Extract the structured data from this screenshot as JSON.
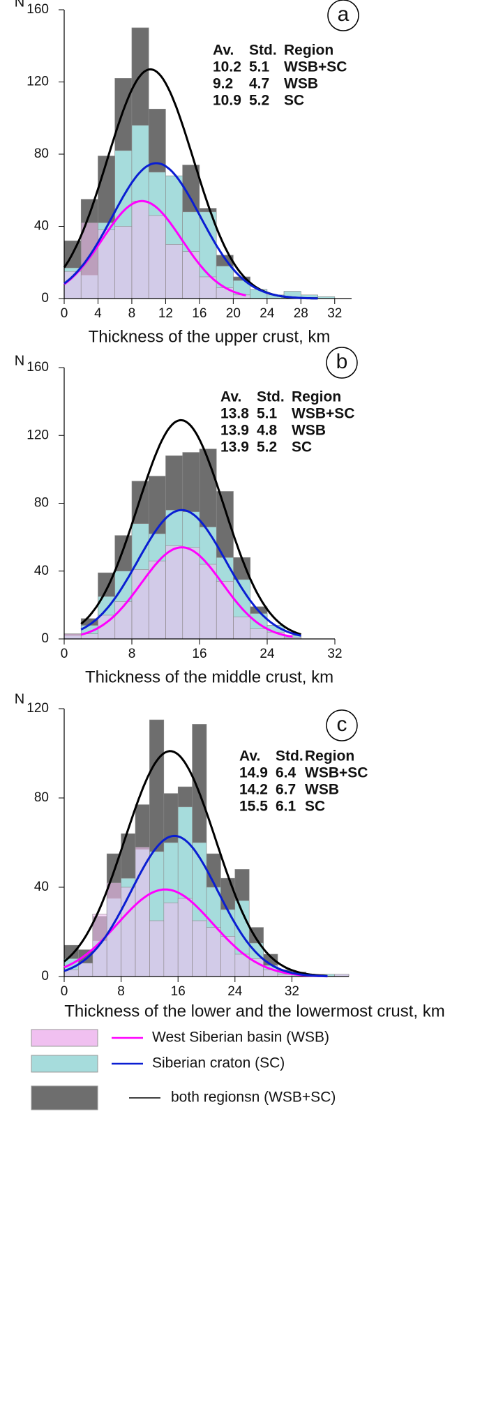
{
  "chart_data": [
    {
      "type": "histogram",
      "panel_label": "a",
      "y_label": "N",
      "x_label": "Thickness of the upper crust, km",
      "xlim": [
        0,
        34
      ],
      "ylim": [
        0,
        160
      ],
      "xticks": [
        0,
        4,
        8,
        12,
        16,
        20,
        24,
        28,
        32
      ],
      "yticks": [
        0,
        40,
        80,
        120,
        160
      ],
      "bins": [
        0,
        2,
        4,
        6,
        8,
        10,
        12,
        14,
        16,
        18,
        20,
        22,
        24,
        26,
        28,
        30,
        32
      ],
      "series": [
        {
          "color": "#f0c0f0",
          "values": [
            15,
            42,
            38,
            40,
            54,
            46,
            30,
            26,
            12,
            6,
            2,
            0,
            0,
            0,
            0,
            0
          ]
        },
        {
          "color": "#a6dcdc",
          "values": [
            17,
            13,
            42,
            82,
            96,
            70,
            68,
            48,
            48,
            18,
            10,
            5,
            2,
            4,
            2,
            1
          ]
        },
        {
          "color": "#6e6e6e",
          "values": [
            32,
            55,
            79,
            122,
            150,
            105,
            65,
            74,
            50,
            24,
            12,
            5,
            2,
            4,
            2,
            1
          ]
        }
      ],
      "stats": {
        "header": [
          "Av.",
          "Std.",
          "Region"
        ],
        "rows": [
          [
            10.2,
            5.1,
            "WSB+SC"
          ],
          [
            9.2,
            4.7,
            "WSB"
          ],
          [
            10.9,
            5.2,
            "SC"
          ]
        ]
      },
      "curves": [
        {
          "color": "#000000",
          "peak": 127,
          "xrange": [
            0,
            30
          ]
        },
        {
          "color": "#ff00ff",
          "peak": 54,
          "xrange": [
            0,
            21.5
          ]
        },
        {
          "color": "#0a1ed2",
          "peak": 75,
          "xrange": [
            0,
            30
          ]
        }
      ]
    },
    {
      "type": "histogram",
      "panel_label": "b",
      "y_label": "N",
      "x_label": "Thickness of the middle crust, km",
      "xlim": [
        0,
        32
      ],
      "ylim": [
        0,
        160
      ],
      "xticks": [
        0,
        8,
        16,
        24,
        32
      ],
      "yticks": [
        0,
        40,
        80,
        120,
        160
      ],
      "bins": [
        0,
        2,
        4,
        6,
        8,
        10,
        12,
        14,
        16,
        18,
        20,
        22,
        24,
        26,
        28
      ],
      "series": [
        {
          "color": "#f0c0f0",
          "values": [
            3,
            3,
            14,
            22,
            41,
            46,
            55,
            54,
            44,
            34,
            13,
            6,
            4,
            1
          ]
        },
        {
          "color": "#a6dcdc",
          "values": [
            2,
            8,
            25,
            40,
            68,
            62,
            76,
            75,
            66,
            48,
            35,
            15,
            8,
            2
          ]
        },
        {
          "color": "#6e6e6e",
          "values": [
            3,
            12,
            39,
            61,
            93,
            96,
            108,
            110,
            112,
            87,
            48,
            19,
            8,
            2
          ]
        }
      ],
      "stats": {
        "header": [
          "Av.",
          "Std.",
          "Region"
        ],
        "rows": [
          [
            13.8,
            5.1,
            "WSB+SC"
          ],
          [
            13.9,
            4.8,
            "WSB"
          ],
          [
            13.9,
            5.2,
            "SC"
          ]
        ]
      },
      "curves": [
        {
          "color": "#000000",
          "peak": 129,
          "xrange": [
            2,
            28
          ]
        },
        {
          "color": "#ff00ff",
          "peak": 54,
          "xrange": [
            2,
            27
          ]
        },
        {
          "color": "#0a1ed2",
          "peak": 76,
          "xrange": [
            2,
            28
          ]
        }
      ]
    },
    {
      "type": "histogram",
      "panel_label": "c",
      "y_label": "N",
      "x_label": "Thickness of the lower and the lowermost crust, km",
      "xlim": [
        0,
        40
      ],
      "ylim": [
        0,
        120
      ],
      "xticks": [
        0,
        8,
        16,
        24,
        32
      ],
      "yticks": [
        0,
        40,
        80,
        120
      ],
      "bins": [
        0,
        2,
        4,
        6,
        8,
        10,
        12,
        14,
        16,
        18,
        20,
        22,
        24,
        26,
        28,
        30,
        32,
        34,
        36,
        38,
        40
      ],
      "series": [
        {
          "color": "#f0c0f0",
          "values": [
            3,
            6,
            28,
            42,
            40,
            58,
            25,
            33,
            35,
            25,
            22,
            18,
            10,
            8,
            3,
            1,
            0,
            1,
            0,
            1
          ]
        },
        {
          "color": "#a6dcdc",
          "values": [
            8,
            6,
            16,
            35,
            44,
            57,
            56,
            60,
            76,
            60,
            40,
            30,
            34,
            15,
            5,
            2,
            1,
            1,
            1,
            1
          ]
        },
        {
          "color": "#6e6e6e",
          "values": [
            14,
            12,
            27,
            55,
            64,
            77,
            115,
            82,
            85,
            113,
            55,
            44,
            48,
            22,
            10,
            3,
            2,
            1,
            1,
            1
          ]
        }
      ],
      "stats": {
        "header": [
          "Av.",
          "Std.",
          "Region"
        ],
        "rows": [
          [
            14.9,
            6.4,
            "WSB+SC"
          ],
          [
            14.2,
            6.7,
            "WSB"
          ],
          [
            15.5,
            6.1,
            "SC"
          ]
        ]
      },
      "curves": [
        {
          "color": "#000000",
          "peak": 101,
          "xrange": [
            0,
            37
          ]
        },
        {
          "color": "#ff00ff",
          "peak": 39,
          "xrange": [
            0,
            37
          ]
        },
        {
          "color": "#0a1ed2",
          "peak": 63,
          "xrange": [
            0,
            37
          ]
        }
      ]
    }
  ],
  "legend": [
    {
      "name": "West Siberian basin (WSB)"
    },
    {
      "name": "Siberian craton (SC)"
    },
    {
      "name": "both regionsn (WSB+SC)"
    }
  ]
}
